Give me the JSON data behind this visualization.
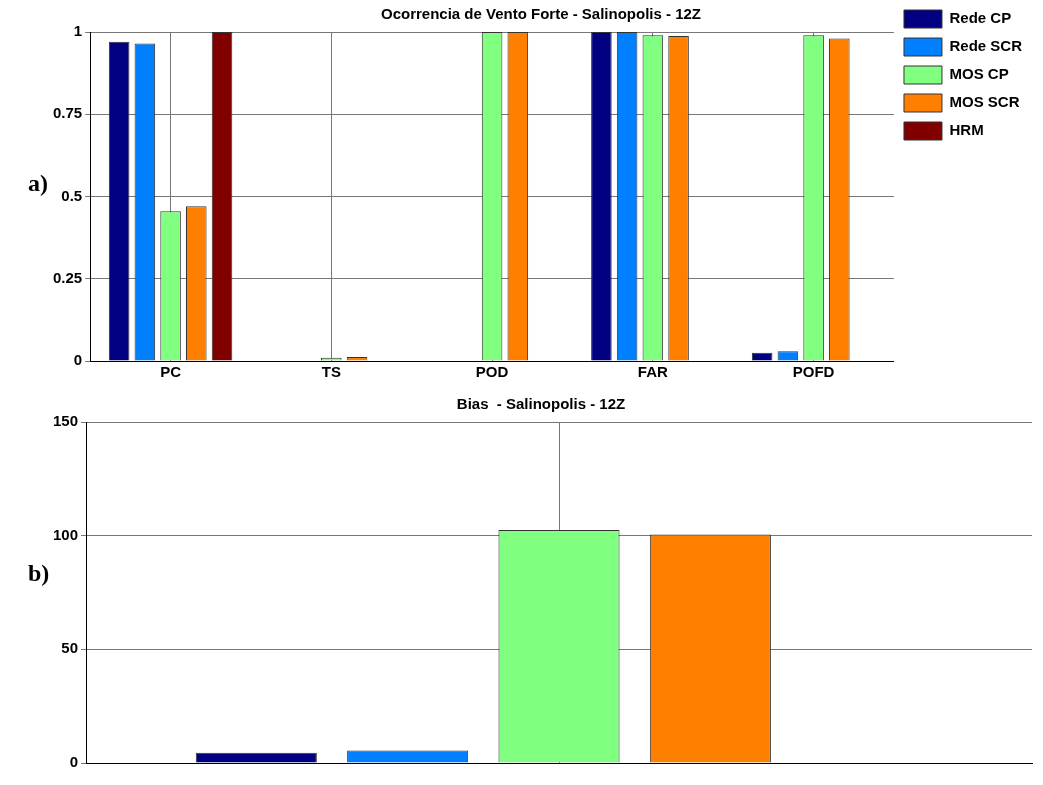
{
  "chart_data": [
    {
      "type": "bar",
      "title": "Ocorrencia de Vento Forte - Salinopolis - 12Z",
      "annotations": [
        "a)"
      ],
      "categories": [
        "PC",
        "TS",
        "POD",
        "FAR",
        "POFD"
      ],
      "series": [
        {
          "name": "Rede CP",
          "color": "#000080",
          "values": [
            0.97,
            0,
            0,
            1,
            0.025
          ]
        },
        {
          "name": "Rede SCR",
          "color": "#0080ff",
          "values": [
            0.965,
            0,
            0,
            1,
            0.03
          ]
        },
        {
          "name": "MOS CP",
          "color": "#80ff80",
          "values": [
            0.455,
            0.01,
            1,
            0.99,
            0.99
          ]
        },
        {
          "name": "MOS SCR",
          "color": "#ff8000",
          "values": [
            0.47,
            0.012,
            1,
            0.988,
            0.98
          ]
        },
        {
          "name": "HRM",
          "color": "#800000",
          "values": [
            1,
            0,
            0,
            0,
            0
          ]
        }
      ],
      "ylim": [
        0,
        1
      ],
      "yticks": [
        0,
        0.25,
        0.5,
        0.75,
        1
      ],
      "grid": true,
      "legend": "right"
    },
    {
      "type": "bar",
      "title": "Bias  - Salinopolis - 12Z",
      "annotations": [
        "b)"
      ],
      "categories": [
        null
      ],
      "series": [
        {
          "color": "#000080",
          "values": [
            4.5
          ]
        },
        {
          "color": "#0080ff",
          "values": [
            5.5
          ]
        },
        {
          "color": "#80ff80",
          "values": [
            102.5
          ]
        },
        {
          "color": "#ff8000",
          "values": [
            100.5
          ]
        },
        {
          "color": "#800000",
          "values": [
            0
          ]
        }
      ],
      "ylim": [
        0,
        150
      ],
      "yticks": [
        0,
        50,
        100,
        150
      ],
      "grid": true,
      "tick_labels": "y"
    }
  ]
}
